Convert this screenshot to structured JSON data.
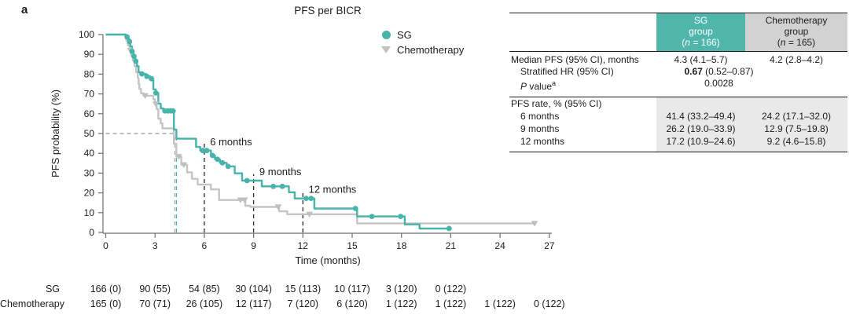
{
  "panel_label": "a",
  "legend": {
    "items": [
      {
        "label": "SG",
        "marker": "circle",
        "color": "#46b4aa"
      },
      {
        "label": "Chemotherapy",
        "marker": "triangle-down",
        "color": "#c2c2c2"
      }
    ]
  },
  "chart_data": {
    "type": "line",
    "subtype": "kaplan-meier-step",
    "title": "PFS per BICR",
    "xlabel": "Time (months)",
    "ylabel": "PFS probability (%)",
    "xlim": [
      0,
      27
    ],
    "ylim": [
      0,
      100
    ],
    "x_ticks": [
      0,
      3,
      6,
      9,
      12,
      15,
      18,
      21,
      24,
      27
    ],
    "y_ticks": [
      0,
      10,
      20,
      30,
      40,
      50,
      60,
      70,
      80,
      90,
      100
    ],
    "legend_position": "top-right-inside",
    "grid": false,
    "series": [
      {
        "name": "Chemotherapy",
        "color": "#c5c5c5",
        "marker": "triangle-down",
        "start": 100,
        "end_t": 26.2,
        "steps": [
          [
            1.25,
            97
          ],
          [
            1.35,
            94.5
          ],
          [
            1.45,
            92
          ],
          [
            1.55,
            89.5
          ],
          [
            1.65,
            87
          ],
          [
            1.75,
            84
          ],
          [
            1.85,
            81
          ],
          [
            1.95,
            78
          ],
          [
            2.0,
            75
          ],
          [
            2.05,
            72.5
          ],
          [
            2.15,
            70.3
          ],
          [
            2.3,
            69.1
          ],
          [
            2.9,
            67.3
          ],
          [
            3.0,
            64.9
          ],
          [
            3.1,
            62.4
          ],
          [
            3.2,
            57.5
          ],
          [
            3.35,
            55.1
          ],
          [
            3.45,
            52.6
          ],
          [
            4.15,
            44.8
          ],
          [
            4.3,
            38.3
          ],
          [
            4.6,
            34.2
          ],
          [
            4.95,
            30.4
          ],
          [
            5.25,
            27.1
          ],
          [
            5.6,
            24.2
          ],
          [
            6.4,
            21.8
          ],
          [
            6.9,
            16.4
          ],
          [
            8.5,
            13.5
          ],
          [
            8.8,
            12.9
          ],
          [
            10.55,
            10.7
          ],
          [
            11.05,
            9.2
          ],
          [
            15.3,
            4.6
          ]
        ],
        "censors": [
          [
            1.5,
            92
          ],
          [
            2.4,
            69.1
          ],
          [
            3.05,
            64.9
          ],
          [
            4.45,
            38.3
          ],
          [
            4.75,
            34.2
          ],
          [
            8.2,
            16.4
          ],
          [
            8.45,
            16.4
          ],
          [
            10.5,
            12.9
          ],
          [
            12.4,
            9.2
          ],
          [
            26.1,
            4.6
          ]
        ]
      },
      {
        "name": "SG",
        "color": "#46b4aa",
        "marker": "circle",
        "start": 100,
        "end_t": 20.9,
        "steps": [
          [
            1.2,
            98.8
          ],
          [
            1.35,
            97.6
          ],
          [
            1.45,
            96.4
          ],
          [
            1.5,
            94
          ],
          [
            1.6,
            91.5
          ],
          [
            1.7,
            89
          ],
          [
            1.8,
            86.5
          ],
          [
            1.9,
            84
          ],
          [
            2.0,
            81
          ],
          [
            2.1,
            80.1
          ],
          [
            2.45,
            78.9
          ],
          [
            2.7,
            77.7
          ],
          [
            2.9,
            72.3
          ],
          [
            3.05,
            70.5
          ],
          [
            3.2,
            65.1
          ],
          [
            3.35,
            62.7
          ],
          [
            3.5,
            61.4
          ],
          [
            4.15,
            52
          ],
          [
            4.3,
            47.4
          ],
          [
            5.5,
            43.2
          ],
          [
            5.75,
            41.4
          ],
          [
            6.4,
            38.9
          ],
          [
            6.65,
            37
          ],
          [
            6.95,
            35.2
          ],
          [
            7.35,
            33.4
          ],
          [
            7.85,
            29.9
          ],
          [
            8.3,
            26.2
          ],
          [
            9.5,
            23.3
          ],
          [
            11.15,
            20.3
          ],
          [
            11.5,
            17.2
          ],
          [
            12.7,
            12.1
          ],
          [
            15.3,
            8.1
          ],
          [
            18.2,
            4.1
          ],
          [
            19.1,
            2
          ]
        ],
        "censors": [
          [
            1.3,
            98.8
          ],
          [
            1.45,
            96.4
          ],
          [
            1.6,
            91.5
          ],
          [
            1.72,
            89
          ],
          [
            1.83,
            86.5
          ],
          [
            2.2,
            80.1
          ],
          [
            2.5,
            78.9
          ],
          [
            2.78,
            77.7
          ],
          [
            3.05,
            70.5
          ],
          [
            3.6,
            61.4
          ],
          [
            3.78,
            61.4
          ],
          [
            3.95,
            61.4
          ],
          [
            4.1,
            61.4
          ],
          [
            5.9,
            41.4
          ],
          [
            6.15,
            41.4
          ],
          [
            6.5,
            38.9
          ],
          [
            6.8,
            37
          ],
          [
            7.1,
            35.2
          ],
          [
            7.45,
            33.4
          ],
          [
            8.6,
            26.2
          ],
          [
            10.2,
            23.3
          ],
          [
            10.75,
            23.3
          ],
          [
            12.2,
            17.2
          ],
          [
            12.5,
            17.2
          ],
          [
            15.2,
            12.1
          ],
          [
            16.2,
            8.1
          ],
          [
            17.95,
            8.1
          ],
          [
            20.9,
            2
          ]
        ]
      }
    ],
    "reference_lines": {
      "horizontal": {
        "y": 50,
        "x_from": 0,
        "x_to": 4.3,
        "color": "#999999"
      },
      "verticals": [
        {
          "x": 4.2,
          "top": 50,
          "color": "#b3b3b3"
        },
        {
          "x": 4.3,
          "top": 50,
          "color": "#46b4aa"
        },
        {
          "x": 6,
          "top": 45.5,
          "color": "#2b2b2b"
        },
        {
          "x": 9,
          "top": 29.5,
          "color": "#2b2b2b"
        },
        {
          "x": 12,
          "top": 20.5,
          "color": "#2b2b2b"
        }
      ]
    },
    "annotations": [
      {
        "text": "6 months",
        "x": 6.35,
        "y": 44
      },
      {
        "text": "9 months",
        "x": 9.35,
        "y": 29
      },
      {
        "text": "12 months",
        "x": 12.35,
        "y": 20
      }
    ]
  },
  "risk_table": {
    "tick_times": [
      0,
      3,
      6,
      9,
      12,
      15,
      18,
      21,
      24,
      27
    ],
    "rows": [
      {
        "label": "SG",
        "values": [
          "166 (0)",
          "90 (55)",
          "54 (85)",
          "30 (104)",
          "15 (113)",
          "10 (117)",
          "3 (120)",
          "0 (122)"
        ]
      },
      {
        "label": "Chemotherapy",
        "values": [
          "165 (0)",
          "70 (71)",
          "26 (105)",
          "12 (117)",
          "7 (120)",
          "6 (120)",
          "1 (122)",
          "1 (122)",
          "1 (122)",
          "0 (122)"
        ]
      }
    ]
  },
  "summary_table": {
    "header": {
      "sg": {
        "line1": "SG",
        "line2": "group",
        "n_pre": "(",
        "n_char": "n",
        "n_post": " = 166)"
      },
      "chemo": {
        "line1": "Chemotherapy",
        "line2": "group",
        "n_pre": "(",
        "n_char": "n",
        "n_post": " = 165)"
      }
    },
    "rows": {
      "median": {
        "label": "Median PFS (95% CI), months",
        "sg": "4.3 (4.1–5.7)",
        "chemo": "4.2 (2.8–4.2)"
      },
      "hr": {
        "label": "Stratified HR (95% CI)",
        "bold": "0.67",
        "rest": " (0.52–0.87)"
      },
      "pvalue": {
        "label_italic": "P",
        "label_rest": " value",
        "sup": "a",
        "value": "0.0028"
      },
      "rate_header": "PFS rate, % (95% CI)",
      "rates": [
        {
          "label": "6 months",
          "sg": "41.4 (33.2–49.4)",
          "chemo": "24.2 (17.1–32.0)"
        },
        {
          "label": "9 months",
          "sg": "26.2 (19.0–33.9)",
          "chemo": "12.9 (7.5–19.8)"
        },
        {
          "label": "12 months",
          "sg": "17.2 (10.9–24.6)",
          "chemo": "9.2 (4.6–15.8)"
        }
      ]
    }
  }
}
